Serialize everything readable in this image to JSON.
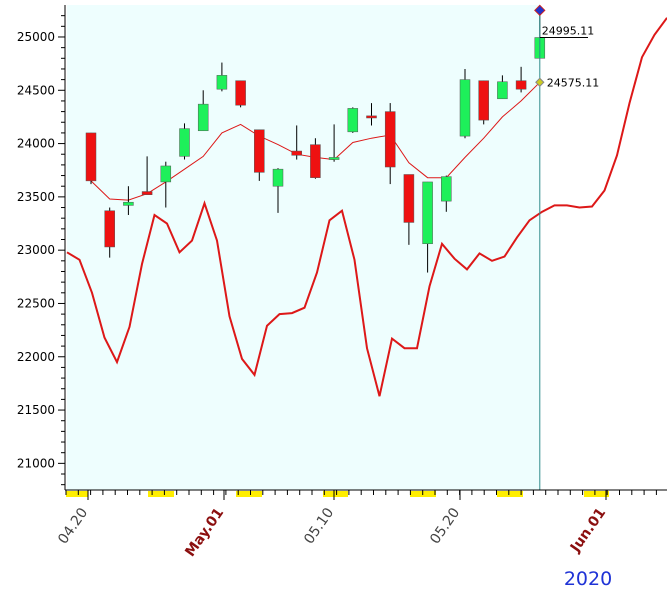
{
  "chart_data": {
    "type": "candlestick",
    "y_ticks": [
      21000,
      21500,
      22000,
      22500,
      23000,
      23500,
      24000,
      24500,
      25000
    ],
    "ylim": [
      20750,
      25300
    ],
    "x_tick_labels": [
      {
        "text": "04.20",
        "emphasis": false
      },
      {
        "text": "May.01",
        "emphasis": true
      },
      {
        "text": "05.10",
        "emphasis": false
      },
      {
        "text": "05.20",
        "emphasis": false
      },
      {
        "text": "Jun.01",
        "emphasis": true
      }
    ],
    "year_label": "2020",
    "price_labels": [
      {
        "text": "24995.11",
        "value": 24995.11
      },
      {
        "text": "24575.11",
        "value": 24575.11
      }
    ],
    "candles": [
      {
        "o": 24100,
        "h": 24100,
        "l": 23620,
        "c": 23650
      },
      {
        "o": 23370,
        "h": 23400,
        "l": 22930,
        "c": 23030
      },
      {
        "o": 23420,
        "h": 23600,
        "l": 23330,
        "c": 23450
      },
      {
        "o": 23550,
        "h": 23880,
        "l": 23530,
        "c": 23520
      },
      {
        "o": 23640,
        "h": 23830,
        "l": 23400,
        "c": 23790
      },
      {
        "o": 23880,
        "h": 24190,
        "l": 23850,
        "c": 24140
      },
      {
        "o": 24120,
        "h": 24500,
        "l": 24120,
        "c": 24370
      },
      {
        "o": 24510,
        "h": 24760,
        "l": 24490,
        "c": 24640
      },
      {
        "o": 24590,
        "h": 24590,
        "l": 24340,
        "c": 24360
      },
      {
        "o": 24130,
        "h": 24130,
        "l": 23650,
        "c": 23730
      },
      {
        "o": 23600,
        "h": 23770,
        "l": 23350,
        "c": 23760
      },
      {
        "o": 23930,
        "h": 24170,
        "l": 23850,
        "c": 23890
      },
      {
        "o": 23990,
        "h": 24050,
        "l": 23670,
        "c": 23680
      },
      {
        "o": 23850,
        "h": 24180,
        "l": 23830,
        "c": 23870
      },
      {
        "o": 24110,
        "h": 24340,
        "l": 24100,
        "c": 24330
      },
      {
        "o": 24260,
        "h": 24380,
        "l": 24170,
        "c": 24240
      },
      {
        "o": 24300,
        "h": 24380,
        "l": 23620,
        "c": 23780
      },
      {
        "o": 23710,
        "h": 23710,
        "l": 23050,
        "c": 23260
      },
      {
        "o": 23060,
        "h": 23640,
        "l": 22790,
        "c": 23640
      },
      {
        "o": 23460,
        "h": 23700,
        "l": 23360,
        "c": 23690
      },
      {
        "o": 24070,
        "h": 24700,
        "l": 24050,
        "c": 24600
      },
      {
        "o": 24590,
        "h": 24590,
        "l": 24180,
        "c": 24220
      },
      {
        "o": 24420,
        "h": 24640,
        "l": 24420,
        "c": 24580
      },
      {
        "o": 24590,
        "h": 24720,
        "l": 24480,
        "c": 24510
      },
      {
        "o": 24800,
        "h": 25250,
        "l": 24800,
        "c": 24995
      }
    ],
    "moving_average": [
      23650,
      23480,
      23470,
      23530,
      23640,
      23760,
      23880,
      24100,
      24180,
      24070,
      23990,
      23900,
      23870,
      23850,
      24010,
      24050,
      24080,
      23820,
      23680,
      23680,
      23870,
      24050,
      24250,
      24400,
      24575
    ],
    "oscillator_line": [
      22980,
      22910,
      22600,
      22180,
      21950,
      22280,
      22870,
      23330,
      23250,
      22980,
      23090,
      23440,
      23090,
      22380,
      21980,
      21830,
      22290,
      22400,
      22410,
      22460,
      22790,
      23280,
      23370,
      22910,
      22080,
      21630,
      22170,
      22080,
      22080,
      22660,
      23060,
      22920,
      22820,
      22970,
      22900,
      22940,
      23120,
      23280,
      23360,
      23420,
      23420,
      23400,
      23410,
      23560,
      23890,
      24380,
      24810,
      25020,
      25180
    ],
    "colors": {
      "up": "#1ef05a",
      "down": "#ee1111",
      "line": "#dd1818",
      "background": "#eefefe",
      "highlight": "#ffee00",
      "cursor": "#2c8c8c",
      "emphasis": "#8b0f0f"
    }
  }
}
